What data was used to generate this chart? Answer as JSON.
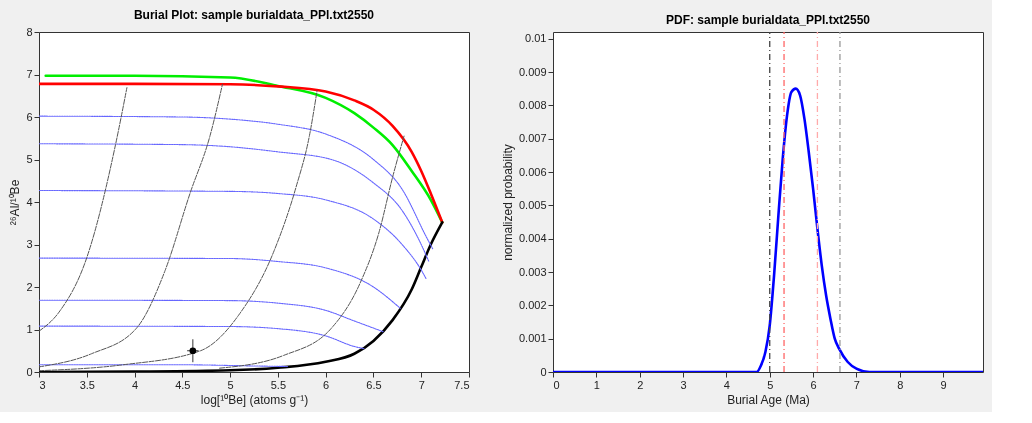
{
  "chart_data": [
    {
      "type": "line",
      "title": "Burial Plot: sample burialdata_PPl.txt2550",
      "xlabel": "log[¹⁰Be] (atoms g⁻¹)",
      "ylabel": "²⁶Al/¹⁰Be",
      "xlim": [
        3,
        7.5
      ],
      "ylim": [
        0,
        8
      ],
      "xticks": [
        3,
        3.5,
        4,
        4.5,
        5,
        5.5,
        6,
        6.5,
        7,
        7.5
      ],
      "yticks": [
        0,
        1,
        2,
        3,
        4,
        5,
        6,
        7,
        8
      ],
      "grid": false,
      "series": [
        {
          "color": "#00ee00",
          "line_style": "solid",
          "x": [
            3.07,
            4.0,
            5.0,
            5.5,
            6.0,
            6.3,
            6.5,
            6.7,
            6.9,
            7.1,
            7.22
          ],
          "values": [
            6.97,
            6.97,
            6.93,
            6.73,
            6.45,
            6.09,
            5.75,
            5.34,
            4.73,
            4.05,
            3.52
          ]
        },
        {
          "color": "#ff0000",
          "line_style": "solid",
          "x": [
            3.0,
            4.0,
            5.0,
            5.5,
            6.0,
            6.3,
            6.5,
            6.7,
            6.9,
            7.0,
            7.1,
            7.22
          ],
          "values": [
            6.78,
            6.78,
            6.77,
            6.72,
            6.6,
            6.39,
            6.17,
            5.79,
            5.18,
            4.73,
            4.2,
            3.52
          ]
        },
        {
          "color": "#000000",
          "line_style": "solid",
          "x": [
            3.0,
            4.0,
            5.0,
            5.5,
            6.0,
            6.3,
            6.5,
            6.7,
            6.9,
            7.0,
            7.1,
            7.22
          ],
          "values": [
            0.0,
            0.01,
            0.04,
            0.1,
            0.24,
            0.43,
            0.73,
            1.22,
            1.94,
            2.47,
            3.0,
            3.52
          ]
        },
        {
          "color": "#6666ff",
          "line_style": "dotted",
          "x": [
            3,
            4.5,
            5.0,
            5.5,
            6.0,
            6.5,
            6.8,
            7.06,
            7.12
          ],
          "values": [
            6.02,
            6.0,
            5.95,
            5.83,
            5.6,
            5.0,
            4.3,
            3.15,
            2.9
          ]
        },
        {
          "color": "#6666ff",
          "line_style": "dotted",
          "x": [
            3,
            4.5,
            5.0,
            5.5,
            6.06,
            6.5,
            6.8,
            7.0,
            7.08
          ],
          "values": [
            5.37,
            5.35,
            5.3,
            5.18,
            5.0,
            4.45,
            3.8,
            3.0,
            2.6
          ]
        },
        {
          "color": "#6666ff",
          "line_style": "dotted",
          "x": [
            3,
            5,
            5.5,
            6.0,
            6.5,
            6.8,
            7.0,
            7.05
          ],
          "values": [
            4.27,
            4.25,
            4.2,
            4.05,
            3.6,
            3.0,
            2.4,
            2.2
          ]
        },
        {
          "color": "#6666ff",
          "line_style": "dotted",
          "x": [
            3,
            5,
            5.5,
            6.0,
            6.5,
            6.78
          ],
          "values": [
            2.68,
            2.67,
            2.6,
            2.45,
            2.0,
            1.5
          ]
        },
        {
          "color": "#6666ff",
          "line_style": "dotted",
          "x": [
            3,
            5,
            5.5,
            6.0,
            6.3,
            6.6
          ],
          "values": [
            1.69,
            1.68,
            1.62,
            1.45,
            1.2,
            0.95
          ]
        },
        {
          "color": "#6666ff",
          "line_style": "dotted",
          "x": [
            3,
            5,
            5.5,
            6.0,
            6.3,
            6.4
          ],
          "values": [
            1.08,
            1.07,
            1.02,
            0.85,
            0.6,
            0.55
          ]
        },
        {
          "color": "#6666ff",
          "line_style": "dotted",
          "x": [
            3,
            4.5,
            5.3,
            5.6
          ],
          "values": [
            0.17,
            0.17,
            0.14,
            0.13
          ]
        },
        {
          "color": "#555555",
          "line_style": "dashed",
          "x": [
            3.0,
            3.21,
            3.5,
            3.8,
            3.92
          ],
          "values": [
            0.96,
            1.41,
            2.69,
            5.34,
            6.69
          ]
        },
        {
          "color": "#555555",
          "line_style": "dashed",
          "x": [
            3.0,
            3.55,
            4.02,
            4.32,
            4.58,
            4.79,
            4.92
          ],
          "values": [
            0.12,
            0.43,
            1.03,
            2.39,
            4.2,
            5.56,
            6.77
          ]
        },
        {
          "color": "#555555",
          "line_style": "dashed",
          "x": [
            3.0,
            3.88,
            4.69,
            5.09,
            5.46,
            5.69,
            5.83,
            5.91
          ],
          "values": [
            0.03,
            0.17,
            0.5,
            1.34,
            2.85,
            4.35,
            5.56,
            6.62
          ]
        },
        {
          "color": "#555555",
          "line_style": "dashed",
          "x": [
            4.89,
            5.56,
            6.06,
            6.36,
            6.56,
            6.7,
            6.82
          ],
          "values": [
            0.09,
            0.39,
            1.03,
            2.09,
            3.3,
            4.58,
            5.55
          ]
        },
        {
          "type": "scatter",
          "color": "#000000",
          "x": [
            4.61
          ],
          "values": [
            0.5
          ],
          "errors": [
            0.27
          ],
          "xerrors": [
            0.06
          ]
        }
      ]
    },
    {
      "type": "line",
      "title": "PDF: sample burialdata_PPl.txt2550",
      "xlabel": "Burial Age (Ma)",
      "ylabel": "normalized probability",
      "xlim": [
        0,
        9.92
      ],
      "ylim": [
        0,
        0.0102
      ],
      "xticks": [
        0,
        1,
        2,
        3,
        4,
        5,
        6,
        7,
        8,
        9
      ],
      "yticks": [
        0,
        0.001,
        0.002,
        0.003,
        0.004,
        0.005,
        0.006,
        0.007,
        0.008,
        0.009,
        0.01
      ],
      "grid": false,
      "series": [
        {
          "color": "#0000ff",
          "line_style": "solid",
          "x": [
            0,
            4.5,
            4.7,
            4.8,
            4.9,
            5.0,
            5.1,
            5.2,
            5.3,
            5.4,
            5.5,
            5.6,
            5.7,
            5.8,
            5.9,
            6.0,
            6.1,
            6.2,
            6.3,
            6.4,
            6.5,
            6.6,
            6.8,
            7.0,
            7.3,
            7.6,
            8.0,
            9.92
          ],
          "values": [
            0,
            0,
            0,
            0.0002,
            0.0006,
            0.0014,
            0.0029,
            0.0047,
            0.0064,
            0.0077,
            0.0084,
            0.0085,
            0.0083,
            0.0076,
            0.0066,
            0.0055,
            0.0043,
            0.0032,
            0.0023,
            0.0016,
            0.001,
            0.0007,
            0.0003,
            0.0001,
            0,
            0,
            0,
            0
          ]
        }
      ],
      "ref_lines": [
        {
          "axis": "x",
          "value": 5.0,
          "color": "#444444",
          "line_style": "dashdot"
        },
        {
          "axis": "x",
          "value": 5.33,
          "color": "#ff6666",
          "line_style": "dashdot"
        },
        {
          "axis": "x",
          "value": 6.1,
          "color": "#ffaaaa",
          "line_style": "dashdot"
        },
        {
          "axis": "x",
          "value": 6.62,
          "color": "#999999",
          "line_style": "dashdot"
        }
      ]
    }
  ]
}
